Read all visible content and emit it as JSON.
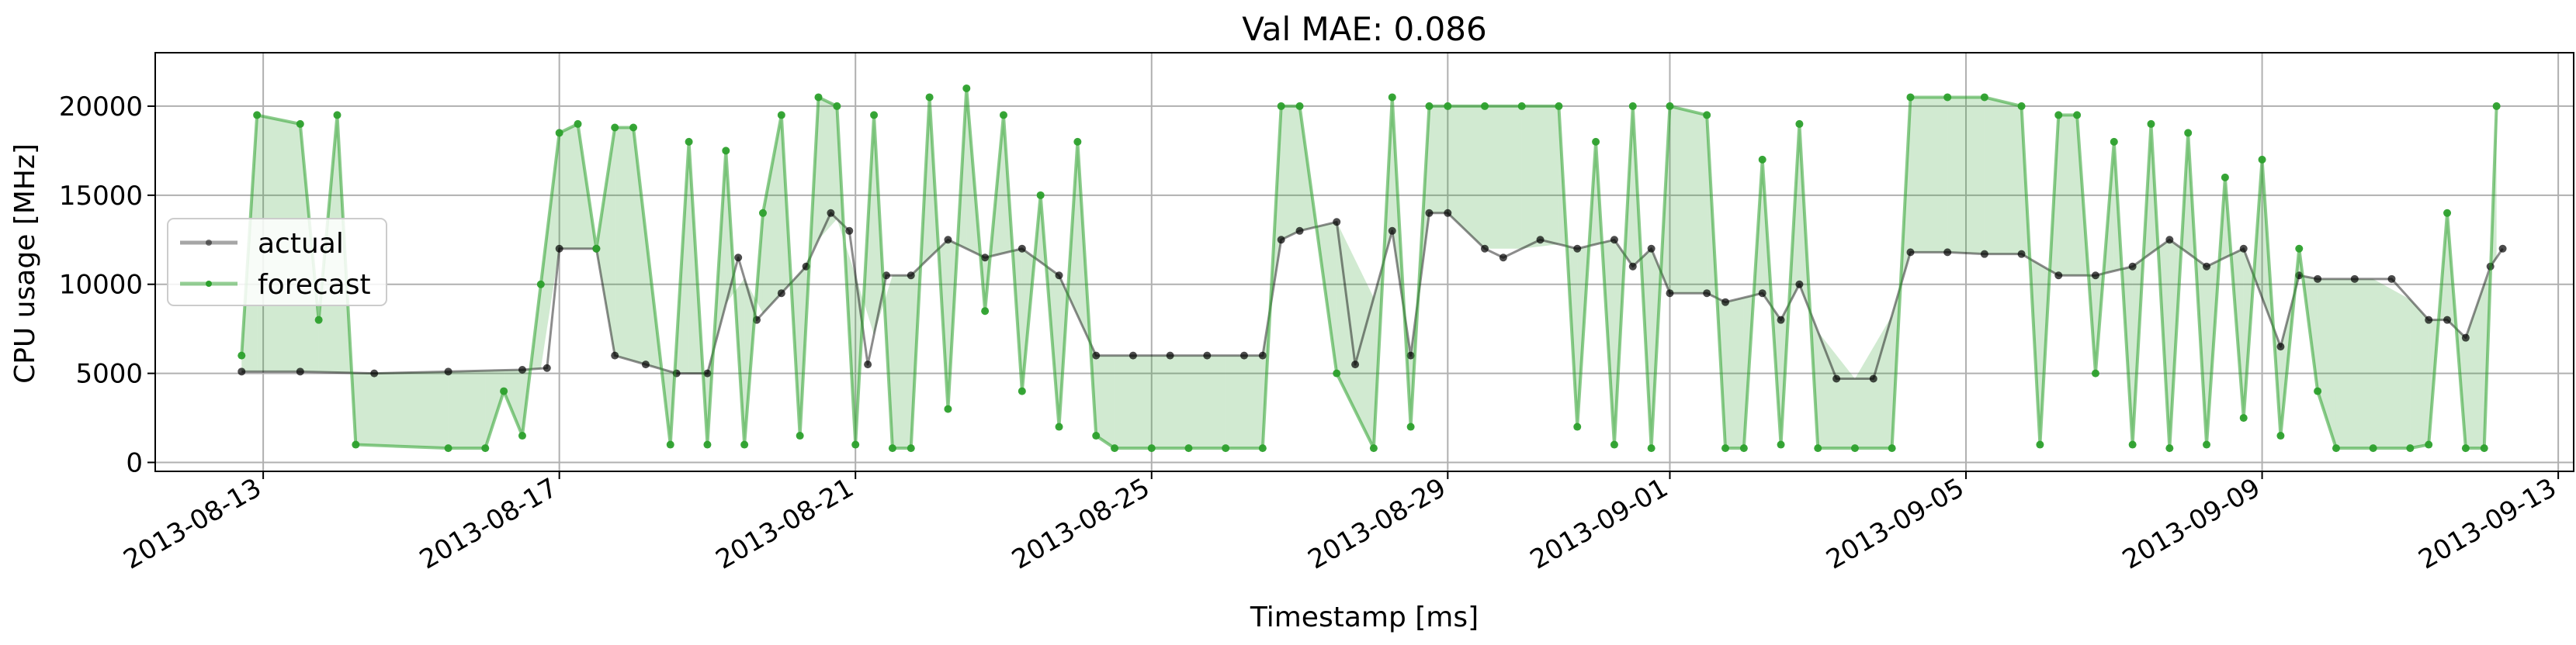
{
  "chart_data": {
    "type": "line",
    "title": "Val MAE: 0.086",
    "xlabel": "Timestamp [ms]",
    "ylabel": "CPU usage [MHz]",
    "xlim": [
      "2013-08-11T13:00",
      "2013-09-13T05:00"
    ],
    "ylim": [
      -500,
      23000
    ],
    "grid": true,
    "legend": "center-left",
    "x_ticks": [
      "2013-08-13",
      "2013-08-17",
      "2013-08-21",
      "2013-08-25",
      "2013-08-29",
      "2013-09-01",
      "2013-09-05",
      "2013-09-09",
      "2013-09-13"
    ],
    "y_ticks": [
      0,
      5000,
      10000,
      15000,
      20000
    ],
    "y_tick_labels": [
      "0",
      "5000",
      "10000",
      "15000",
      "20000"
    ],
    "colors": {
      "actual": "#000000",
      "forecast": "#2ca02c"
    },
    "series": [
      {
        "name": "actual",
        "x": [
          "2013-08-12T17:00",
          "2013-08-13T12:00",
          "2013-08-14T12:00",
          "2013-08-15T12:00",
          "2013-08-16T12:00",
          "2013-08-16T20:00",
          "2013-08-17T00:00",
          "2013-08-17T12:00",
          "2013-08-17T18:00",
          "2013-08-18T04:00",
          "2013-08-18T14:00",
          "2013-08-19T00:00",
          "2013-08-19T10:00",
          "2013-08-19T16:00",
          "2013-08-20T00:00",
          "2013-08-20T08:00",
          "2013-08-20T16:00",
          "2013-08-20T22:00",
          "2013-08-21T04:00",
          "2013-08-21T10:00",
          "2013-08-21T18:00",
          "2013-08-22T06:00",
          "2013-08-22T18:00",
          "2013-08-23T06:00",
          "2013-08-23T18:00",
          "2013-08-24T06:00",
          "2013-08-24T18:00",
          "2013-08-25T06:00",
          "2013-08-25T18:00",
          "2013-08-26T06:00",
          "2013-08-26T12:00",
          "2013-08-26T18:00",
          "2013-08-27T00:00",
          "2013-08-27T12:00",
          "2013-08-27T18:00",
          "2013-08-28T06:00",
          "2013-08-28T12:00",
          "2013-08-28T18:00",
          "2013-08-29T00:00",
          "2013-08-29T12:00",
          "2013-08-29T18:00",
          "2013-08-30T06:00",
          "2013-08-30T18:00",
          "2013-08-31T06:00",
          "2013-08-31T12:00",
          "2013-08-31T18:00",
          "2013-09-01T00:00",
          "2013-09-01T12:00",
          "2013-09-01T18:00",
          "2013-09-02T06:00",
          "2013-09-02T12:00",
          "2013-09-02T18:00",
          "2013-09-03T06:00",
          "2013-09-03T18:00",
          "2013-09-04T06:00",
          "2013-09-04T18:00",
          "2013-09-05T06:00",
          "2013-09-05T18:00",
          "2013-09-06T06:00",
          "2013-09-06T18:00",
          "2013-09-07T06:00",
          "2013-09-07T18:00",
          "2013-09-08T06:00",
          "2013-09-08T18:00",
          "2013-09-09T06:00",
          "2013-09-09T12:00",
          "2013-09-09T18:00",
          "2013-09-10T06:00",
          "2013-09-10T18:00",
          "2013-09-11T06:00",
          "2013-09-11T12:00",
          "2013-09-11T18:00",
          "2013-09-12T02:00",
          "2013-09-12T06:00"
        ],
        "y": [
          5100,
          5100,
          5000,
          5100,
          5200,
          5300,
          12000,
          12000,
          6000,
          5500,
          5000,
          5000,
          11500,
          8000,
          9500,
          11000,
          14000,
          13000,
          5500,
          10500,
          10500,
          12500,
          11500,
          12000,
          10500,
          6000,
          6000,
          6000,
          6000,
          6000,
          6000,
          12500,
          13000,
          13500,
          5500,
          13000,
          6000,
          14000,
          14000,
          12000,
          11500,
          12500,
          12000,
          12500,
          11000,
          12000,
          9500,
          9500,
          9000,
          9500,
          8000,
          10000,
          4700,
          4700,
          11800,
          11800,
          11700,
          11700,
          10500,
          10500,
          11000,
          12500,
          11000,
          12000,
          6500,
          10500,
          10300,
          10300,
          10300,
          8000,
          8000,
          7000,
          11000,
          12000
        ]
      },
      {
        "name": "forecast",
        "x": [
          "2013-08-12T17:00",
          "2013-08-12T22:00",
          "2013-08-13T12:00",
          "2013-08-13T18:00",
          "2013-08-14T00:00",
          "2013-08-14T06:00",
          "2013-08-15T12:00",
          "2013-08-16T00:00",
          "2013-08-16T06:00",
          "2013-08-16T12:00",
          "2013-08-16T18:00",
          "2013-08-17T00:00",
          "2013-08-17T06:00",
          "2013-08-17T12:00",
          "2013-08-17T18:00",
          "2013-08-18T00:00",
          "2013-08-18T12:00",
          "2013-08-18T18:00",
          "2013-08-19T00:00",
          "2013-08-19T06:00",
          "2013-08-19T12:00",
          "2013-08-19T18:00",
          "2013-08-20T00:00",
          "2013-08-20T06:00",
          "2013-08-20T12:00",
          "2013-08-20T18:00",
          "2013-08-21T00:00",
          "2013-08-21T06:00",
          "2013-08-21T12:00",
          "2013-08-21T18:00",
          "2013-08-22T00:00",
          "2013-08-22T06:00",
          "2013-08-22T12:00",
          "2013-08-22T18:00",
          "2013-08-23T00:00",
          "2013-08-23T06:00",
          "2013-08-23T12:00",
          "2013-08-23T18:00",
          "2013-08-24T00:00",
          "2013-08-24T06:00",
          "2013-08-24T12:00",
          "2013-08-25T00:00",
          "2013-08-25T12:00",
          "2013-08-26T00:00",
          "2013-08-26T12:00",
          "2013-08-26T18:00",
          "2013-08-27T00:00",
          "2013-08-27T12:00",
          "2013-08-28T00:00",
          "2013-08-28T06:00",
          "2013-08-28T12:00",
          "2013-08-28T18:00",
          "2013-08-29T00:00",
          "2013-08-29T12:00",
          "2013-08-30T00:00",
          "2013-08-30T12:00",
          "2013-08-30T18:00",
          "2013-08-31T00:00",
          "2013-08-31T06:00",
          "2013-08-31T12:00",
          "2013-08-31T18:00",
          "2013-09-01T00:00",
          "2013-09-01T12:00",
          "2013-09-01T18:00",
          "2013-09-02T00:00",
          "2013-09-02T06:00",
          "2013-09-02T12:00",
          "2013-09-02T18:00",
          "2013-09-03T00:00",
          "2013-09-03T12:00",
          "2013-09-04T00:00",
          "2013-09-04T06:00",
          "2013-09-04T18:00",
          "2013-09-05T06:00",
          "2013-09-05T18:00",
          "2013-09-06T00:00",
          "2013-09-06T06:00",
          "2013-09-06T12:00",
          "2013-09-06T18:00",
          "2013-09-07T00:00",
          "2013-09-07T06:00",
          "2013-09-07T12:00",
          "2013-09-07T18:00",
          "2013-09-08T00:00",
          "2013-09-08T06:00",
          "2013-09-08T12:00",
          "2013-09-08T18:00",
          "2013-09-09T00:00",
          "2013-09-09T06:00",
          "2013-09-09T12:00",
          "2013-09-09T18:00",
          "2013-09-10T00:00",
          "2013-09-10T12:00",
          "2013-09-11T00:00",
          "2013-09-11T06:00",
          "2013-09-11T12:00",
          "2013-09-11T18:00",
          "2013-09-12T00:00",
          "2013-09-12T04:00"
        ],
        "y": [
          6000,
          19500,
          19000,
          8000,
          19500,
          1000,
          800,
          800,
          4000,
          1500,
          10000,
          18500,
          19000,
          12000,
          18800,
          18800,
          1000,
          18000,
          1000,
          17500,
          1000,
          14000,
          19500,
          1500,
          20500,
          20000,
          1000,
          19500,
          800,
          800,
          20500,
          3000,
          21000,
          8500,
          19500,
          4000,
          15000,
          2000,
          18000,
          1500,
          800,
          800,
          800,
          800,
          800,
          20000,
          20000,
          5000,
          800,
          20500,
          2000,
          20000,
          20000,
          20000,
          20000,
          20000,
          2000,
          18000,
          1000,
          20000,
          800,
          20000,
          19500,
          800,
          800,
          17000,
          1000,
          19000,
          800,
          800,
          800,
          20500,
          20500,
          20500,
          20000,
          1000,
          19500,
          19500,
          5000,
          18000,
          1000,
          19000,
          800,
          18500,
          1000,
          16000,
          2500,
          17000,
          1500,
          12000,
          4000,
          800,
          800,
          800,
          1000,
          14000,
          800,
          800,
          20000
        ]
      }
    ]
  }
}
